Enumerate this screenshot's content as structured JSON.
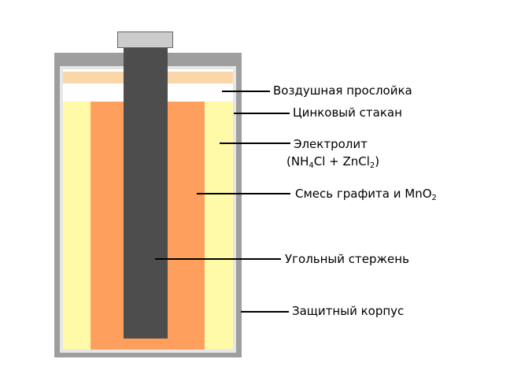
{
  "colors": {
    "casing": "#9e9e9e",
    "zinc_cup": "#e6e6e6",
    "electrolyte": "#fffaa8",
    "mixture": "#ff9f5e",
    "air_gap": "#fad7a8",
    "rod": "#4d4d4d",
    "cap": "#cccccc",
    "cap_border": "#666666"
  },
  "labels": {
    "air_layer": "Воздушная прослойка",
    "zinc_cup": "Цинковый стакан",
    "electrolyte": {
      "line1": "Электролит",
      "formula_open": "(NH",
      "formula_sub1": "4",
      "formula_mid": "Cl + ZnCl",
      "formula_sub2": "2",
      "formula_close": ")"
    },
    "mixture": {
      "text": "Смесь графита и MnO",
      "sub": "2"
    },
    "carbon_rod": "Угольный стержень",
    "protective_case": "Защитный корпус"
  }
}
